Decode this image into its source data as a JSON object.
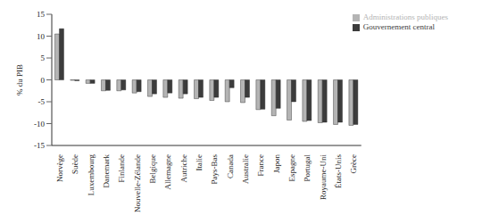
{
  "chart_data": {
    "type": "bar",
    "y_label": "% du PIB",
    "categories": [
      "Norvège",
      "Suède",
      "Luxembourg",
      "Danemark",
      "Finlande",
      "Nouvelle-Zélande",
      "Belgique",
      "Allemagne",
      "Autriche",
      "Italie",
      "Pays-Bas",
      "Canada",
      "Australie",
      "France",
      "Japon",
      "Espagne",
      "Portugal",
      "Royaume-Uni",
      "États-Unis",
      "Grèce"
    ],
    "series": [
      {
        "name": "Administrations publiques",
        "color": "#b4b4b4",
        "values": [
          10.5,
          -0.1,
          -0.8,
          -2.5,
          -2.5,
          -3,
          -3.8,
          -4,
          -4.2,
          -4.3,
          -4.7,
          -5,
          -5.2,
          -6.8,
          -8.2,
          -9.2,
          -9.5,
          -9.8,
          -10.2,
          -10.4
        ]
      },
      {
        "name": "Gouvernement central",
        "color": "#3c3c3c",
        "values": [
          11.7,
          -0.2,
          -0.8,
          -2.4,
          -2.3,
          -2.7,
          -3.2,
          -3,
          -3.2,
          -4,
          -4,
          -1.8,
          -4,
          -6.7,
          -6.5,
          -5,
          -9.3,
          -9.7,
          -9.7,
          -10.2
        ]
      }
    ],
    "ylim": [
      -15,
      15
    ],
    "yticks": [
      -15,
      -10,
      -5,
      0,
      5,
      10,
      15
    ],
    "grid": false,
    "legend": "top-right"
  }
}
